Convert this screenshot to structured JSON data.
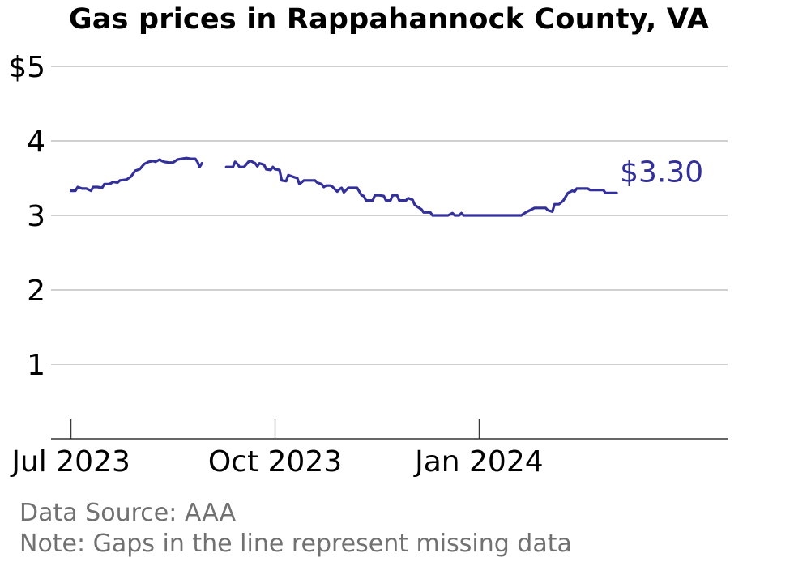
{
  "title": "Gas prices in Rappahannock County, VA",
  "source": "Data Source: AAA",
  "note": "Note: Gaps in the line represent missing data",
  "end_label": "$3.30",
  "colors": {
    "line": "#33309a",
    "grid": "#b3b3b3",
    "axis": "#333333",
    "note": "#717171"
  },
  "chart_data": {
    "type": "line",
    "title": "Gas prices in Rappahannock County, VA",
    "xlabel": "",
    "ylabel": "",
    "ylim": [
      0,
      5
    ],
    "xlim": [
      "2023-06-22",
      "2024-04-22"
    ],
    "y_ticks": [
      {
        "value": 1,
        "label": "1"
      },
      {
        "value": 2,
        "label": "2"
      },
      {
        "value": 3,
        "label": "3"
      },
      {
        "value": 4,
        "label": "4"
      },
      {
        "value": 5,
        "label": "$5"
      }
    ],
    "x_ticks": [
      {
        "value": "2023-07-01",
        "label": "Jul 2023"
      },
      {
        "value": "2023-10-01",
        "label": "Oct 2023"
      },
      {
        "value": "2024-01-01",
        "label": "Jan 2024"
      }
    ],
    "grid": true,
    "series": [
      {
        "segments": [
          [
            [
              "2023-07-01",
              3.33
            ],
            [
              "2023-07-03",
              3.33
            ],
            [
              "2023-07-04",
              3.38
            ],
            [
              "2023-07-06",
              3.36
            ],
            [
              "2023-07-08",
              3.36
            ],
            [
              "2023-07-10",
              3.33
            ],
            [
              "2023-07-11",
              3.38
            ],
            [
              "2023-07-13",
              3.38
            ],
            [
              "2023-07-15",
              3.37
            ],
            [
              "2023-07-16",
              3.42
            ],
            [
              "2023-07-18",
              3.42
            ],
            [
              "2023-07-19",
              3.43
            ],
            [
              "2023-07-20",
              3.45
            ],
            [
              "2023-07-22",
              3.44
            ],
            [
              "2023-07-23",
              3.47
            ],
            [
              "2023-07-26",
              3.48
            ],
            [
              "2023-07-28",
              3.52
            ],
            [
              "2023-07-30",
              3.6
            ],
            [
              "2023-08-01",
              3.62
            ],
            [
              "2023-08-03",
              3.69
            ],
            [
              "2023-08-05",
              3.72
            ],
            [
              "2023-08-07",
              3.73
            ],
            [
              "2023-08-08",
              3.72
            ],
            [
              "2023-08-10",
              3.75
            ],
            [
              "2023-08-11",
              3.73
            ],
            [
              "2023-08-12",
              3.72
            ],
            [
              "2023-08-14",
              3.71
            ],
            [
              "2023-08-16",
              3.71
            ],
            [
              "2023-08-18",
              3.75
            ],
            [
              "2023-08-20",
              3.76
            ],
            [
              "2023-08-22",
              3.77
            ],
            [
              "2023-08-24",
              3.76
            ],
            [
              "2023-08-26",
              3.76
            ],
            [
              "2023-08-27",
              3.72
            ],
            [
              "2023-08-28",
              3.65
            ],
            [
              "2023-08-29",
              3.7
            ]
          ],
          [
            [
              "2023-09-09",
              3.65
            ],
            [
              "2023-09-12",
              3.65
            ],
            [
              "2023-09-13",
              3.72
            ],
            [
              "2023-09-14",
              3.69
            ],
            [
              "2023-09-15",
              3.65
            ],
            [
              "2023-09-17",
              3.65
            ],
            [
              "2023-09-19",
              3.72
            ],
            [
              "2023-09-20",
              3.73
            ],
            [
              "2023-09-22",
              3.7
            ],
            [
              "2023-09-23",
              3.66
            ],
            [
              "2023-09-24",
              3.7
            ],
            [
              "2023-09-26",
              3.68
            ],
            [
              "2023-09-27",
              3.62
            ],
            [
              "2023-09-29",
              3.61
            ],
            [
              "2023-09-30",
              3.65
            ],
            [
              "2023-10-01",
              3.62
            ],
            [
              "2023-10-03",
              3.61
            ],
            [
              "2023-10-04",
              3.47
            ],
            [
              "2023-10-06",
              3.46
            ],
            [
              "2023-10-07",
              3.54
            ],
            [
              "2023-10-09",
              3.52
            ],
            [
              "2023-10-11",
              3.5
            ],
            [
              "2023-10-12",
              3.42
            ],
            [
              "2023-10-14",
              3.47
            ],
            [
              "2023-10-17",
              3.47
            ],
            [
              "2023-10-19",
              3.47
            ],
            [
              "2023-10-20",
              3.44
            ],
            [
              "2023-10-22",
              3.42
            ],
            [
              "2023-10-23",
              3.38
            ],
            [
              "2023-10-24",
              3.4
            ],
            [
              "2023-10-26",
              3.4
            ],
            [
              "2023-10-27",
              3.38
            ],
            [
              "2023-10-29",
              3.32
            ],
            [
              "2023-10-30",
              3.35
            ],
            [
              "2023-10-31",
              3.37
            ],
            [
              "2023-11-01",
              3.31
            ],
            [
              "2023-11-03",
              3.37
            ],
            [
              "2023-11-05",
              3.37
            ],
            [
              "2023-11-07",
              3.37
            ],
            [
              "2023-11-08",
              3.32
            ],
            [
              "2023-11-09",
              3.27
            ],
            [
              "2023-11-10",
              3.26
            ],
            [
              "2023-11-11",
              3.2
            ],
            [
              "2023-11-14",
              3.2
            ],
            [
              "2023-11-15",
              3.27
            ],
            [
              "2023-11-17",
              3.27
            ],
            [
              "2023-11-19",
              3.26
            ],
            [
              "2023-11-20",
              3.2
            ],
            [
              "2023-11-22",
              3.2
            ],
            [
              "2023-11-23",
              3.27
            ],
            [
              "2023-11-25",
              3.27
            ],
            [
              "2023-11-26",
              3.2
            ],
            [
              "2023-11-29",
              3.2
            ],
            [
              "2023-11-30",
              3.23
            ],
            [
              "2023-12-02",
              3.21
            ],
            [
              "2023-12-03",
              3.14
            ],
            [
              "2023-12-04",
              3.12
            ],
            [
              "2023-12-06",
              3.08
            ],
            [
              "2023-12-07",
              3.04
            ],
            [
              "2023-12-10",
              3.04
            ],
            [
              "2023-12-11",
              3.0
            ],
            [
              "2023-12-14",
              3.0
            ],
            [
              "2023-12-18",
              3.0
            ],
            [
              "2023-12-20",
              3.03
            ],
            [
              "2023-12-21",
              3.0
            ],
            [
              "2023-12-23",
              3.0
            ],
            [
              "2023-12-24",
              3.03
            ],
            [
              "2023-12-25",
              3.0
            ],
            [
              "2023-12-29",
              3.0
            ],
            [
              "2024-01-03",
              3.0
            ],
            [
              "2024-01-08",
              3.0
            ],
            [
              "2024-01-13",
              3.0
            ],
            [
              "2024-01-20",
              3.0
            ],
            [
              "2024-01-22",
              3.04
            ],
            [
              "2024-01-24",
              3.07
            ],
            [
              "2024-01-26",
              3.1
            ],
            [
              "2024-01-29",
              3.1
            ],
            [
              "2024-01-31",
              3.1
            ],
            [
              "2024-02-01",
              3.07
            ],
            [
              "2024-02-03",
              3.05
            ],
            [
              "2024-02-04",
              3.15
            ],
            [
              "2024-02-06",
              3.15
            ],
            [
              "2024-02-08",
              3.2
            ],
            [
              "2024-02-10",
              3.3
            ],
            [
              "2024-02-12",
              3.33
            ],
            [
              "2024-02-13",
              3.32
            ],
            [
              "2024-02-14",
              3.36
            ],
            [
              "2024-02-16",
              3.36
            ],
            [
              "2024-02-19",
              3.36
            ],
            [
              "2024-02-20",
              3.34
            ],
            [
              "2024-02-23",
              3.34
            ],
            [
              "2024-02-26",
              3.34
            ],
            [
              "2024-02-27",
              3.3
            ],
            [
              "2024-03-01",
              3.3
            ],
            [
              "2024-03-03",
              3.3
            ]
          ]
        ]
      }
    ]
  }
}
